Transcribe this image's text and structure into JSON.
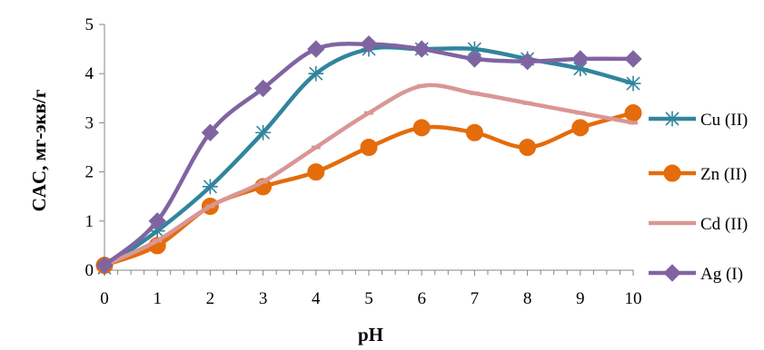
{
  "chart_data": {
    "type": "line",
    "xlabel": "pH",
    "ylabel": "CAC, мг-экв/г",
    "xlim": [
      0,
      10
    ],
    "ylim": [
      0,
      5
    ],
    "x_ticks": [
      "0",
      "1",
      "2",
      "3",
      "4",
      "5",
      "6",
      "7",
      "8",
      "9",
      "10"
    ],
    "y_ticks": [
      "0",
      "1",
      "2",
      "3",
      "4",
      "5"
    ],
    "grid": false,
    "legend_position": "right",
    "series": [
      {
        "name": "Cu (II)",
        "color": "#31859c",
        "marker": "star",
        "x": [
          0,
          1,
          2,
          3,
          4,
          5,
          6,
          7,
          8,
          9,
          10
        ],
        "y": [
          0.05,
          0.8,
          1.7,
          2.8,
          4.0,
          4.5,
          4.5,
          4.5,
          4.3,
          4.1,
          3.8
        ]
      },
      {
        "name": "Zn (II)",
        "color": "#e46c0a",
        "marker": "circle",
        "x": [
          0,
          1,
          2,
          3,
          4,
          5,
          6,
          7,
          8,
          9,
          10
        ],
        "y": [
          0.1,
          0.5,
          1.3,
          1.7,
          2.0,
          2.5,
          2.9,
          2.8,
          2.5,
          2.9,
          3.2
        ]
      },
      {
        "name": "Cd (II)",
        "color": "#d99694",
        "marker": "dash",
        "x": [
          0,
          1,
          2,
          3,
          4,
          5,
          6,
          7,
          8,
          9,
          10
        ],
        "y": [
          0.1,
          0.6,
          1.3,
          1.8,
          2.5,
          3.2,
          3.75,
          3.6,
          3.4,
          3.2,
          3.0
        ]
      },
      {
        "name": "Ag (I)",
        "color": "#8064a2",
        "marker": "diamond",
        "x": [
          0,
          1,
          2,
          3,
          4,
          5,
          6,
          7,
          8,
          9,
          10
        ],
        "y": [
          0.1,
          1.0,
          2.8,
          3.7,
          4.5,
          4.6,
          4.5,
          4.3,
          4.25,
          4.3,
          4.3
        ]
      }
    ]
  }
}
